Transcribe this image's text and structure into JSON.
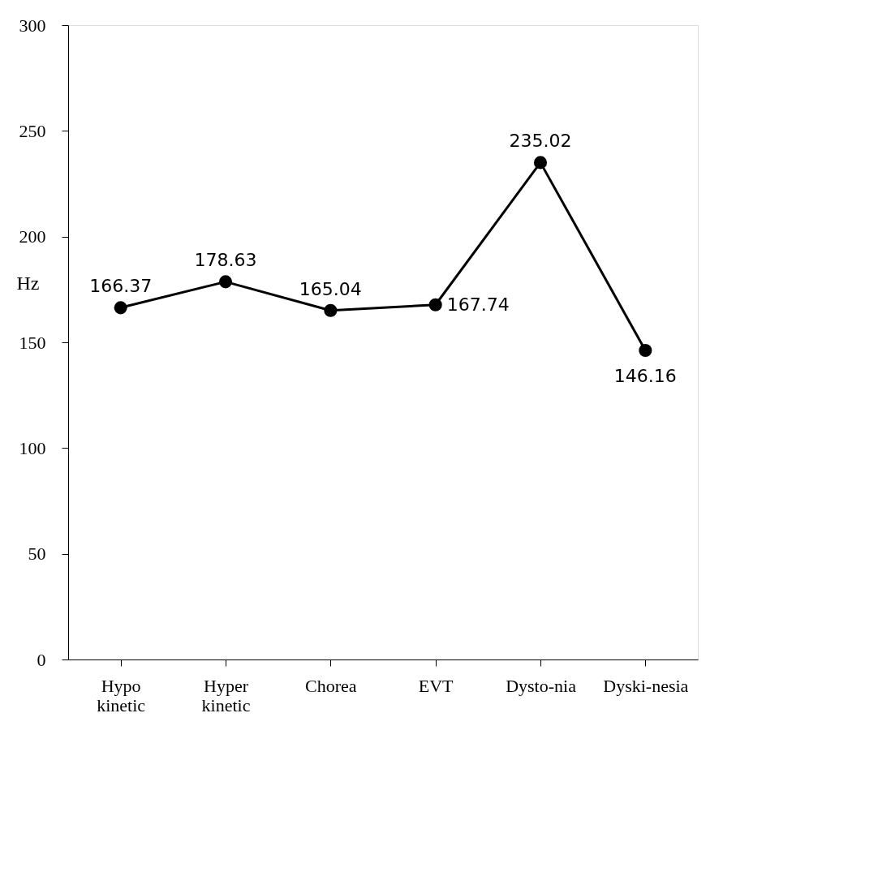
{
  "chart_data": {
    "type": "line",
    "ylabel": "Hz",
    "categories": [
      "Hypo kinetic",
      "Hyper kinetic",
      "Chorea",
      "EVT",
      "Dysto-nia",
      "Dyski-nesia"
    ],
    "series": [
      {
        "color": "#000000",
        "values": [
          166.37,
          178.63,
          165.04,
          167.74,
          235.02,
          146.16
        ]
      }
    ],
    "ylim": [
      0,
      300
    ],
    "yticks": [
      0,
      50,
      100,
      150,
      200,
      250,
      300
    ],
    "grid": false,
    "marker": "circle",
    "line_style": "solid",
    "data_labels": true
  }
}
